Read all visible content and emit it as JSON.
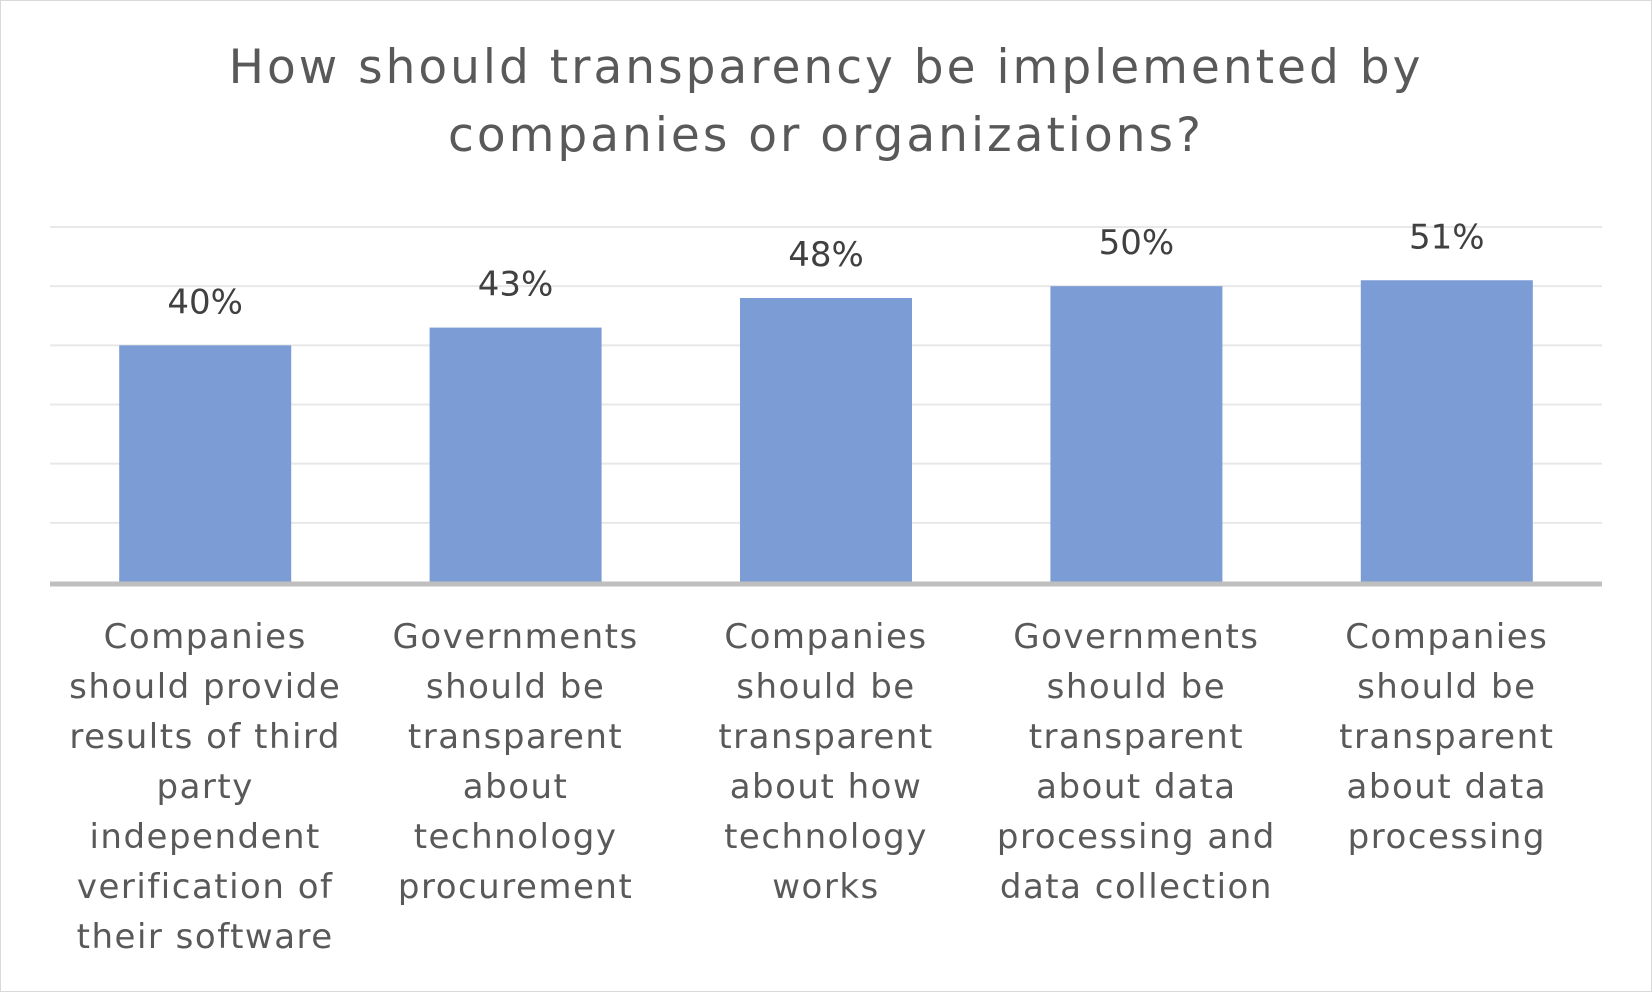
{
  "chart_data": {
    "type": "bar",
    "title_lines": [
      "How should transparency be implemented by",
      "companies or organizations?"
    ],
    "categories": [
      "Companies should provide results of third party independent verification of their software",
      "Governments should be transparent about technology procurement",
      "Companies should be transparent about how technology works",
      "Governments should be transparent about data processing and data collection",
      "Companies should be transparent about data processing"
    ],
    "category_label_lines": [
      [
        "Companies",
        "should provide",
        "results of third",
        "party",
        "independent",
        "verification of",
        "their software"
      ],
      [
        "Governments",
        "should be",
        "transparent",
        "about technology",
        "procurement"
      ],
      [
        "Companies",
        "should be",
        "transparent",
        "about how",
        "technology",
        "works"
      ],
      [
        "Governments",
        "should be",
        "transparent",
        "about data",
        "processing and",
        "data collection"
      ],
      [
        "Companies",
        "should be",
        "transparent",
        "about data",
        "processing"
      ]
    ],
    "values": [
      40,
      43,
      48,
      50,
      51
    ],
    "data_labels": [
      "40%",
      "43%",
      "48%",
      "50%",
      "51%"
    ],
    "ylim": [
      0,
      60
    ],
    "gridlines": true,
    "legend": false,
    "bar_color": "#7b9cd5",
    "grid_color": "#e8e8e8",
    "axis_color": "#bfbfbf",
    "text_color": "#595959"
  }
}
